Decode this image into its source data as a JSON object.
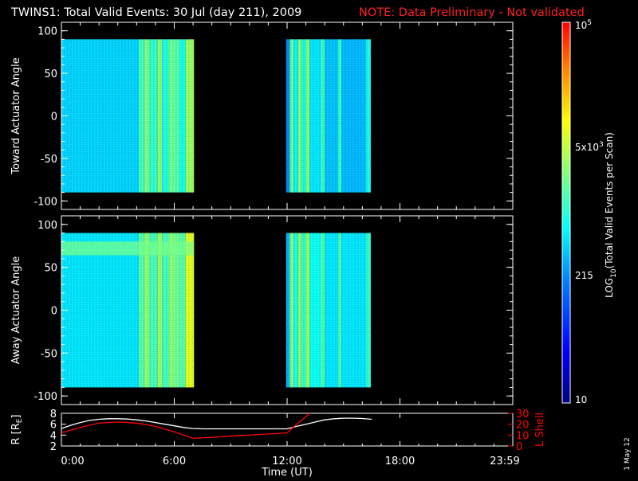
{
  "header": {
    "title": "TWINS1: Total Valid Events: 30 Jul (day 211), 2009",
    "note": "NOTE: Data Preliminary - Not validated",
    "note_color": "#ff2020"
  },
  "footer": {
    "date_stamp": "1 May 12"
  },
  "colorbar": {
    "label": "LOG10(Total Valid Events per Scan)",
    "ticks": [
      "10",
      "215",
      "5x10^3",
      "10^5"
    ],
    "tick_values": [
      10,
      215,
      5000,
      100000
    ],
    "scale": "log",
    "colormap": [
      "#00007f",
      "#0000ff",
      "#0080ff",
      "#00ffff",
      "#80ff80",
      "#ffff00",
      "#ff8000",
      "#ff0000"
    ]
  },
  "chart_data": [
    {
      "type": "heatmap",
      "panel": "toward",
      "ylabel": "Toward Actuator Angle",
      "ylim": [
        -110,
        110
      ],
      "yticks": [
        100,
        50,
        0,
        -50,
        -100
      ],
      "xlim": [
        0,
        24
      ],
      "x_unit": "hours UT",
      "angle_range": [
        -90,
        90
      ],
      "segments": [
        {
          "start": 0.0,
          "end": 7.05
        },
        {
          "start": 11.95,
          "end": 16.45
        }
      ],
      "columns": [
        {
          "x0": 0.0,
          "x1": 4.1,
          "level": 0.38
        },
        {
          "x0": 4.1,
          "x1": 4.4,
          "level": 0.5
        },
        {
          "x0": 4.4,
          "x1": 4.7,
          "level": 0.56
        },
        {
          "x0": 4.7,
          "x1": 5.1,
          "level": 0.48
        },
        {
          "x0": 5.1,
          "x1": 5.35,
          "level": 0.58
        },
        {
          "x0": 5.35,
          "x1": 5.7,
          "level": 0.46
        },
        {
          "x0": 5.7,
          "x1": 6.0,
          "level": 0.55
        },
        {
          "x0": 6.0,
          "x1": 6.3,
          "level": 0.52
        },
        {
          "x0": 6.3,
          "x1": 6.6,
          "level": 0.45
        },
        {
          "x0": 6.6,
          "x1": 7.05,
          "level": 0.6
        },
        {
          "x0": 11.95,
          "x1": 12.15,
          "level": 0.3
        },
        {
          "x0": 12.15,
          "x1": 12.35,
          "level": 0.55
        },
        {
          "x0": 12.35,
          "x1": 12.6,
          "level": 0.42
        },
        {
          "x0": 12.6,
          "x1": 12.75,
          "level": 0.62
        },
        {
          "x0": 12.75,
          "x1": 13.0,
          "level": 0.45
        },
        {
          "x0": 13.0,
          "x1": 13.2,
          "level": 0.58
        },
        {
          "x0": 13.2,
          "x1": 13.8,
          "level": 0.4
        },
        {
          "x0": 13.8,
          "x1": 14.0,
          "level": 0.5
        },
        {
          "x0": 14.0,
          "x1": 14.7,
          "level": 0.36
        },
        {
          "x0": 14.7,
          "x1": 14.9,
          "level": 0.48
        },
        {
          "x0": 14.9,
          "x1": 16.2,
          "level": 0.35
        },
        {
          "x0": 16.2,
          "x1": 16.45,
          "level": 0.45
        }
      ]
    },
    {
      "type": "heatmap",
      "panel": "away",
      "ylabel": "Away Actuator Angle",
      "ylim": [
        -110,
        110
      ],
      "yticks": [
        100,
        50,
        0,
        -50,
        -100
      ],
      "xlim": [
        0,
        24
      ],
      "x_unit": "hours UT",
      "angle_range": [
        -90,
        90
      ],
      "segments": [
        {
          "start": 0.0,
          "end": 7.05
        },
        {
          "start": 11.95,
          "end": 16.45
        }
      ],
      "band": {
        "angle_center": 72,
        "angle_halfwidth": 8,
        "level": 0.56
      },
      "columns": [
        {
          "x0": 0.0,
          "x1": 4.1,
          "level": 0.4
        },
        {
          "x0": 4.1,
          "x1": 4.4,
          "level": 0.52
        },
        {
          "x0": 4.4,
          "x1": 4.7,
          "level": 0.58
        },
        {
          "x0": 4.7,
          "x1": 5.1,
          "level": 0.5
        },
        {
          "x0": 5.1,
          "x1": 5.35,
          "level": 0.6
        },
        {
          "x0": 5.35,
          "x1": 5.7,
          "level": 0.5
        },
        {
          "x0": 5.7,
          "x1": 6.0,
          "level": 0.58
        },
        {
          "x0": 6.0,
          "x1": 6.3,
          "level": 0.55
        },
        {
          "x0": 6.3,
          "x1": 6.6,
          "level": 0.52
        },
        {
          "x0": 6.6,
          "x1": 7.05,
          "level": 0.68
        },
        {
          "x0": 11.95,
          "x1": 12.15,
          "level": 0.35
        },
        {
          "x0": 12.15,
          "x1": 12.35,
          "level": 0.58
        },
        {
          "x0": 12.35,
          "x1": 12.6,
          "level": 0.45
        },
        {
          "x0": 12.6,
          "x1": 12.75,
          "level": 0.62
        },
        {
          "x0": 12.75,
          "x1": 13.0,
          "level": 0.48
        },
        {
          "x0": 13.0,
          "x1": 13.2,
          "level": 0.6
        },
        {
          "x0": 13.2,
          "x1": 13.8,
          "level": 0.44
        },
        {
          "x0": 13.8,
          "x1": 14.0,
          "level": 0.52
        },
        {
          "x0": 14.0,
          "x1": 14.7,
          "level": 0.4
        },
        {
          "x0": 14.7,
          "x1": 14.9,
          "level": 0.5
        },
        {
          "x0": 14.9,
          "x1": 16.2,
          "level": 0.4
        },
        {
          "x0": 16.2,
          "x1": 16.45,
          "level": 0.48
        }
      ]
    },
    {
      "type": "line",
      "panel": "orbit",
      "ylabel": "R [RE]",
      "ylim": [
        2,
        8
      ],
      "yticks": [
        2,
        4,
        6,
        8
      ],
      "y2label": "L Shell",
      "y2lim": [
        0,
        30
      ],
      "y2ticks": [
        0,
        10,
        20,
        30
      ],
      "y2color": "#ff0000",
      "xlabel": "Time (UT)",
      "xlim": [
        0,
        24
      ],
      "xticks": [
        "0:00",
        "6:00",
        "12:00",
        "18:00",
        "23:59"
      ],
      "xtick_values": [
        0,
        6,
        12,
        18,
        24
      ],
      "series": [
        {
          "axis": "left",
          "color": "#ffffff",
          "x": [
            0,
            0.5,
            1,
            1.5,
            2,
            2.5,
            3,
            3.5,
            4,
            4.5,
            5,
            5.5,
            6,
            6.5,
            7,
            7.5,
            8,
            9,
            10,
            11,
            12,
            12.5,
            13,
            13.5,
            14,
            14.5,
            15,
            15.5,
            16,
            16.5
          ],
          "y": [
            5.2,
            5.8,
            6.3,
            6.7,
            6.9,
            7.0,
            7.0,
            6.95,
            6.8,
            6.6,
            6.3,
            6.0,
            5.7,
            5.4,
            5.2,
            5.15,
            5.15,
            5.15,
            5.15,
            5.15,
            5.15,
            5.6,
            6.0,
            6.4,
            6.8,
            7.0,
            7.1,
            7.1,
            7.05,
            6.9
          ]
        },
        {
          "axis": "right",
          "color": "#ff0000",
          "x": [
            0,
            1,
            2,
            3,
            4,
            5,
            6,
            7,
            8,
            9,
            10,
            11,
            12,
            12.5,
            13,
            13.2
          ],
          "y": [
            12,
            17,
            21,
            22,
            21,
            18,
            13,
            7,
            8,
            9,
            10,
            11,
            12,
            20,
            27,
            30
          ]
        }
      ]
    }
  ]
}
